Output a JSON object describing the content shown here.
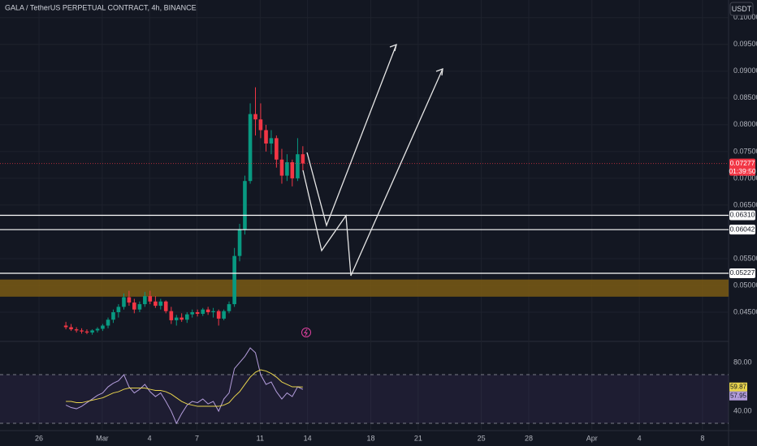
{
  "chart_data": {
    "type": "candlestick",
    "title": "GALA / TetherUS PERPETUAL CONTRACT, 4h, BINANCE",
    "currency_button": "USDT",
    "x": [
      1.7,
      2.03,
      2.37,
      2.7,
      3.03,
      3.37,
      3.7,
      4.03,
      4.37,
      4.7,
      5.03,
      5.37,
      5.7,
      6.03,
      6.37,
      6.7,
      7.03,
      7.37,
      7.7,
      8.03,
      8.37,
      8.7,
      9.03,
      9.37,
      9.7,
      10.03,
      10.37,
      10.7,
      11.03,
      11.37,
      11.7,
      12.03,
      12.37,
      12.7,
      13.03,
      13.37,
      13.7,
      14.03,
      14.37,
      14.7,
      15.03,
      15.37,
      15.7,
      16.03,
      16.37,
      16.7
    ],
    "open": [
      0.0425,
      0.0422,
      0.0418,
      0.0416,
      0.0414,
      0.0412,
      0.0416,
      0.0419,
      0.0425,
      0.0436,
      0.045,
      0.046,
      0.0478,
      0.0468,
      0.0455,
      0.0465,
      0.048,
      0.047,
      0.0462,
      0.047,
      0.0452,
      0.0435,
      0.044,
      0.0436,
      0.0446,
      0.045,
      0.0447,
      0.0455,
      0.045,
      0.0452,
      0.0438,
      0.0452,
      0.0465,
      0.0555,
      0.0605,
      0.0695,
      0.082,
      0.081,
      0.079,
      0.0765,
      0.0775,
      0.0735,
      0.0705,
      0.073,
      0.07,
      0.0745
    ],
    "high": [
      0.0432,
      0.0428,
      0.0422,
      0.042,
      0.0418,
      0.0418,
      0.0422,
      0.0428,
      0.044,
      0.0455,
      0.0465,
      0.0485,
      0.049,
      0.0475,
      0.047,
      0.0488,
      0.049,
      0.048,
      0.0475,
      0.0472,
      0.046,
      0.0445,
      0.0448,
      0.045,
      0.0455,
      0.0455,
      0.0458,
      0.046,
      0.0458,
      0.0455,
      0.0455,
      0.047,
      0.057,
      0.0615,
      0.0705,
      0.084,
      0.087,
      0.084,
      0.08,
      0.079,
      0.078,
      0.0755,
      0.0745,
      0.0735,
      0.0775,
      0.076
    ],
    "low": [
      0.0418,
      0.0415,
      0.0412,
      0.041,
      0.0409,
      0.0408,
      0.0412,
      0.0415,
      0.042,
      0.043,
      0.044,
      0.0455,
      0.0462,
      0.0448,
      0.045,
      0.046,
      0.0465,
      0.0458,
      0.0455,
      0.0448,
      0.0428,
      0.0425,
      0.0432,
      0.043,
      0.044,
      0.0442,
      0.0443,
      0.0445,
      0.044,
      0.0425,
      0.0435,
      0.0448,
      0.046,
      0.0545,
      0.0595,
      0.069,
      0.078,
      0.0775,
      0.075,
      0.0745,
      0.072,
      0.069,
      0.0695,
      0.0685,
      0.0695,
      0.0715
    ],
    "close": [
      0.0422,
      0.0418,
      0.0416,
      0.0414,
      0.0412,
      0.0416,
      0.0419,
      0.0425,
      0.0436,
      0.045,
      0.046,
      0.0478,
      0.0468,
      0.0455,
      0.0465,
      0.048,
      0.047,
      0.0462,
      0.047,
      0.0452,
      0.0435,
      0.044,
      0.0436,
      0.0446,
      0.045,
      0.0447,
      0.0455,
      0.045,
      0.0452,
      0.0438,
      0.0452,
      0.0465,
      0.0555,
      0.0605,
      0.0695,
      0.082,
      0.081,
      0.079,
      0.0765,
      0.0775,
      0.0735,
      0.0705,
      0.073,
      0.07,
      0.0745,
      0.07277
    ],
    "up_color": "#089981",
    "down_color": "#f23645",
    "xlim": [
      -2.47,
      43.65
    ],
    "xticks": [
      {
        "value": 0,
        "label": "26"
      },
      {
        "value": 4,
        "label": "Mar"
      },
      {
        "value": 7,
        "label": "4"
      },
      {
        "value": 10,
        "label": "7"
      },
      {
        "value": 14,
        "label": "11"
      },
      {
        "value": 17,
        "label": "14"
      },
      {
        "value": 21,
        "label": "18"
      },
      {
        "value": 24,
        "label": "21"
      },
      {
        "value": 28,
        "label": "25"
      },
      {
        "value": 31,
        "label": "28"
      },
      {
        "value": 35,
        "label": "Apr"
      },
      {
        "value": 38,
        "label": "4"
      },
      {
        "value": 42,
        "label": "8"
      }
    ],
    "ylim": [
      0.0397,
      0.1033
    ],
    "yticks": [
      {
        "value": 0.045,
        "label": "0.04500"
      },
      {
        "value": 0.05,
        "label": "0.05000"
      },
      {
        "value": 0.055,
        "label": "0.05500"
      },
      {
        "value": 0.065,
        "label": "0.06500"
      },
      {
        "value": 0.07,
        "label": "0.07000"
      },
      {
        "value": 0.075,
        "label": "0.07500"
      },
      {
        "value": 0.08,
        "label": "0.08000"
      },
      {
        "value": 0.085,
        "label": "0.08500"
      },
      {
        "value": 0.09,
        "label": "0.09000"
      },
      {
        "value": 0.095,
        "label": "0.09500"
      },
      {
        "value": 0.1,
        "label": "0.10000"
      }
    ],
    "horizontal_lines": [
      {
        "value": 0.0631,
        "label": "0.06310"
      },
      {
        "value": 0.06042,
        "label": "0.06042"
      },
      {
        "value": 0.05227,
        "label": "0.05227"
      }
    ],
    "zone": [
      0.0479,
      0.0511
    ],
    "zone_color": "#7a5a14",
    "last_price": {
      "value": 0.07277,
      "label": "0.07277"
    },
    "countdown": "01:39:50",
    "grid": true,
    "rsi": {
      "ylim": [
        24.7,
        94.7
      ],
      "yticks": [
        {
          "value": 80,
          "label": "80.00"
        },
        {
          "value": 40,
          "label": "40.00"
        }
      ],
      "bands": [
        30,
        70
      ],
      "series": [
        {
          "color": "#b39ddb",
          "values": [
            45,
            43,
            42,
            44,
            47,
            50,
            53,
            55,
            60,
            63,
            65,
            70,
            60,
            55,
            58,
            62,
            56,
            52,
            55,
            48,
            40,
            30,
            38,
            45,
            48,
            47,
            50,
            46,
            48,
            40,
            50,
            55,
            75,
            80,
            85,
            92,
            88,
            70,
            62,
            64,
            56,
            50,
            55,
            52,
            60,
            57.95
          ],
          "value_label": "57.95"
        },
        {
          "color": "#e8d44d",
          "values": [
            48,
            48,
            47,
            47,
            48,
            49,
            50,
            51,
            53,
            55,
            56,
            58,
            59,
            59,
            59,
            59,
            58,
            57,
            57,
            56,
            54,
            51,
            48,
            46,
            45,
            44,
            44,
            44,
            44,
            44,
            45,
            47,
            52,
            56,
            62,
            68,
            72,
            74,
            73,
            71,
            68,
            64,
            62,
            60,
            60,
            59.87
          ],
          "value_label": "59.87"
        }
      ]
    }
  }
}
